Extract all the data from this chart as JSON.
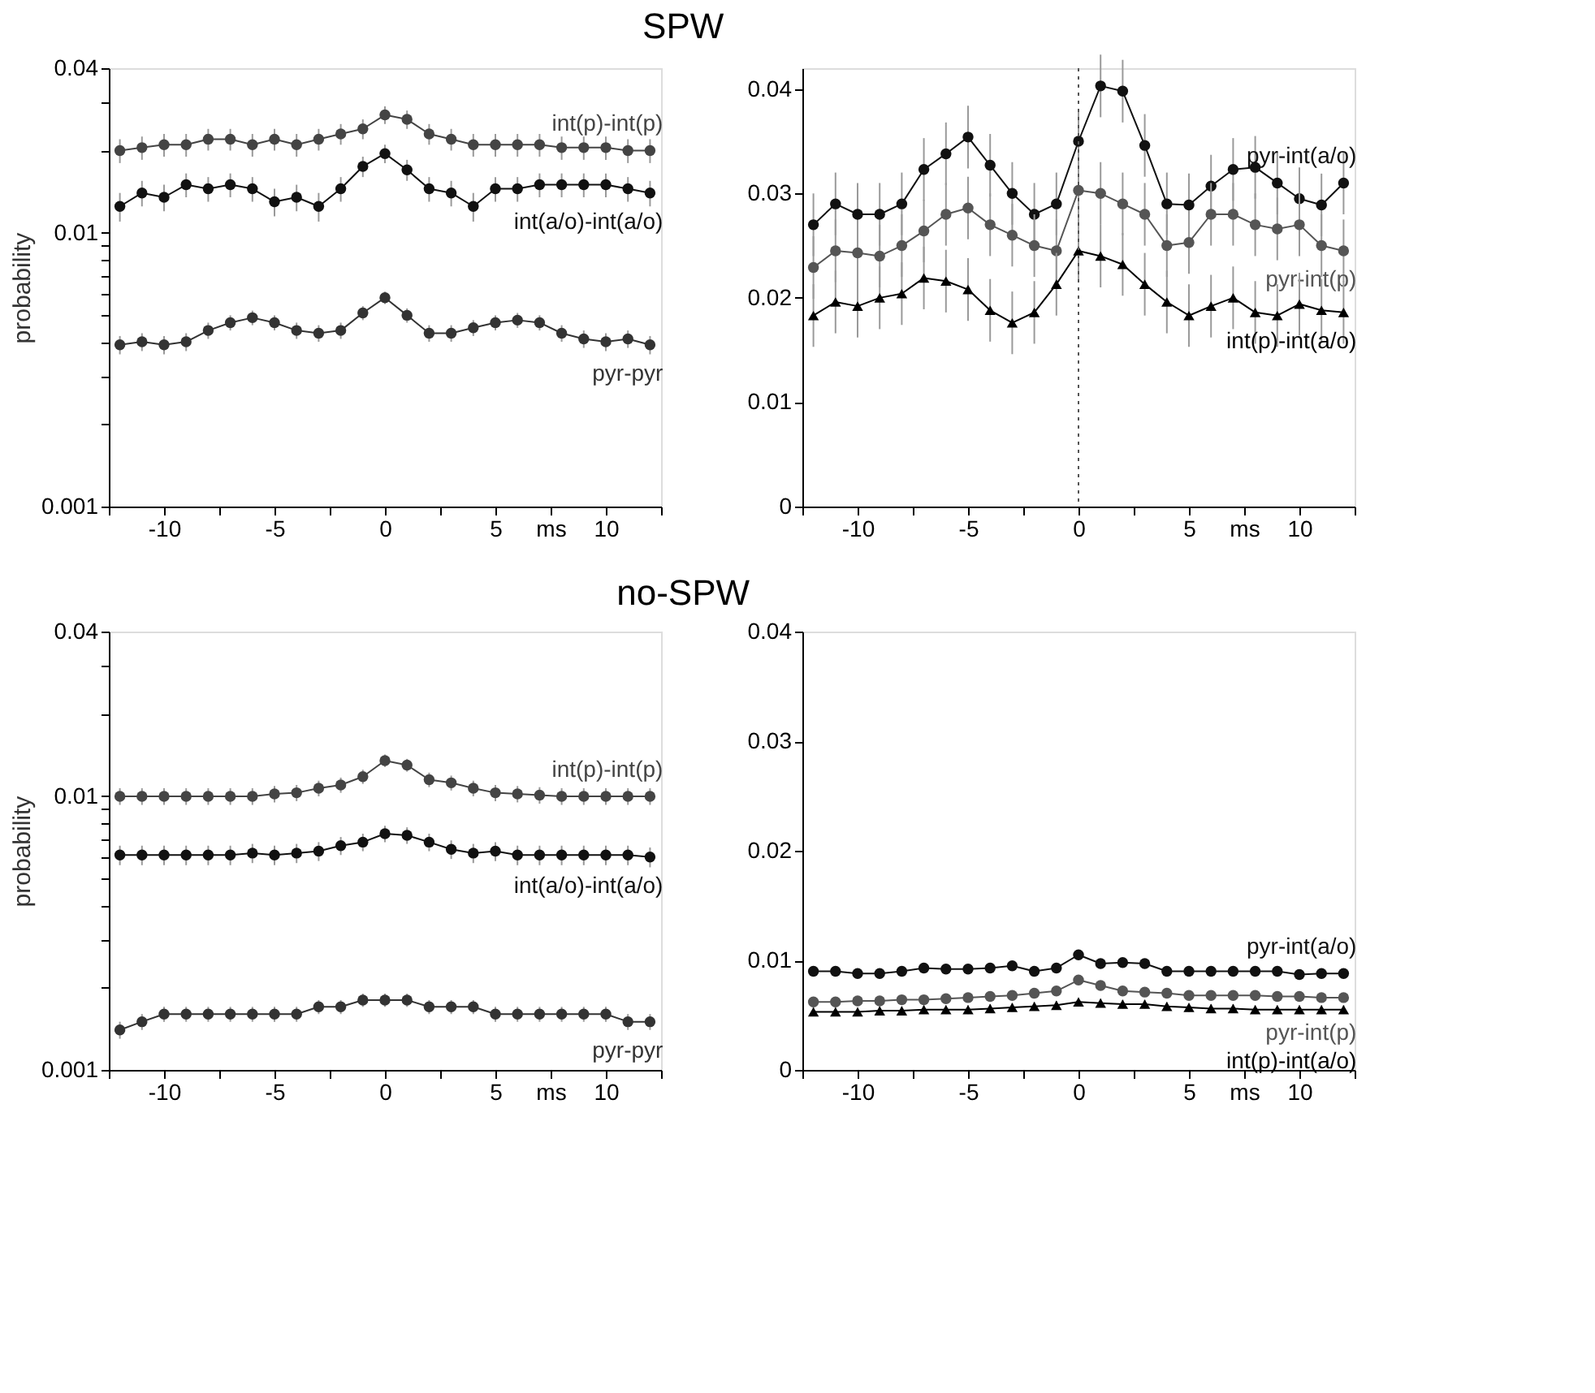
{
  "chart_data": [
    {
      "type": "line",
      "title": "SPW",
      "ylabel": "probability",
      "log": true,
      "xlim": [
        -12.5,
        12.5
      ],
      "ylim": [
        0.001,
        0.04
      ],
      "xticks": [
        {
          "value": -12.5,
          "label": null
        },
        -10,
        {
          "value": -7.5,
          "label": null
        },
        -5,
        {
          "value": -2.5,
          "label": null
        },
        0,
        {
          "value": 2.5,
          "label": null
        },
        5,
        {
          "value": 7.5,
          "label": "ms"
        },
        10,
        {
          "value": 12.5,
          "label": null
        }
      ],
      "yticks": [
        0.001,
        {
          "value": 0.002,
          "label": null
        },
        {
          "value": 0.003,
          "label": null
        },
        {
          "value": 0.004,
          "label": null
        },
        {
          "value": 0.005,
          "label": null
        },
        {
          "value": 0.006,
          "label": null
        },
        {
          "value": 0.007,
          "label": null
        },
        {
          "value": 0.008,
          "label": null
        },
        {
          "value": 0.009,
          "label": null
        },
        0.01,
        {
          "value": 0.02,
          "label": null
        },
        {
          "value": 0.03,
          "label": null
        },
        0.04
      ],
      "x": [
        -12,
        -11,
        -10,
        -9,
        -8,
        -7,
        -6,
        -5,
        -4,
        -3,
        -2,
        -1,
        0,
        1,
        2,
        3,
        4,
        5,
        6,
        7,
        8,
        9,
        10,
        11,
        12
      ],
      "marker": "circle",
      "series": [
        {
          "name": "int(p)-int(p)",
          "color": "#444444",
          "values": [
            0.02,
            0.0205,
            0.021,
            0.021,
            0.022,
            0.022,
            0.021,
            0.022,
            0.021,
            0.022,
            0.023,
            0.024,
            0.027,
            0.026,
            0.023,
            0.022,
            0.021,
            0.021,
            0.021,
            0.021,
            0.0205,
            0.0205,
            0.0205,
            0.02,
            0.02
          ],
          "errors": [
            0.002,
            0.002,
            0.002,
            0.002,
            0.002,
            0.002,
            0.002,
            0.002,
            0.002,
            0.002,
            0.002,
            0.002,
            0.002,
            0.002,
            0.002,
            0.002,
            0.002,
            0.002,
            0.002,
            0.002,
            0.002,
            0.002,
            0.002,
            0.002,
            0.002
          ]
        },
        {
          "name": "int(a/o)-int(a/o)",
          "color": "#111111",
          "values": [
            0.0125,
            0.014,
            0.0135,
            0.015,
            0.0145,
            0.015,
            0.0145,
            0.013,
            0.0135,
            0.0125,
            0.0145,
            0.0175,
            0.0195,
            0.017,
            0.0145,
            0.014,
            0.0125,
            0.0145,
            0.0145,
            0.015,
            0.015,
            0.015,
            0.015,
            0.0145,
            0.014
          ],
          "errors": [
            0.0015,
            0.0015,
            0.0015,
            0.0015,
            0.0015,
            0.0015,
            0.0015,
            0.0015,
            0.0015,
            0.0015,
            0.0015,
            0.0015,
            0.0015,
            0.0015,
            0.0015,
            0.0015,
            0.0015,
            0.0015,
            0.0015,
            0.0015,
            0.0015,
            0.0015,
            0.0015,
            0.0015,
            0.0015
          ]
        },
        {
          "name": "pyr-pyr",
          "color": "#333333",
          "values": [
            0.0039,
            0.004,
            0.0039,
            0.004,
            0.0044,
            0.0047,
            0.0049,
            0.0047,
            0.0044,
            0.0043,
            0.0044,
            0.0051,
            0.0058,
            0.005,
            0.0043,
            0.0043,
            0.0045,
            0.0047,
            0.0048,
            0.0047,
            0.0043,
            0.0041,
            0.004,
            0.0041,
            0.0039
          ],
          "errors": [
            0.0003,
            0.0003,
            0.0003,
            0.0003,
            0.0003,
            0.0003,
            0.0003,
            0.0003,
            0.0003,
            0.0003,
            0.0003,
            0.0003,
            0.0003,
            0.0003,
            0.0003,
            0.0003,
            0.0003,
            0.0003,
            0.0003,
            0.0003,
            0.0003,
            0.0003,
            0.0003,
            0.0003,
            0.0003
          ]
        }
      ]
    },
    {
      "type": "line",
      "xlim": [
        -12.5,
        12.5
      ],
      "ylim": [
        0,
        0.042
      ],
      "xticks": [
        {
          "value": -12.5,
          "label": null
        },
        -10,
        {
          "value": -7.5,
          "label": null
        },
        -5,
        {
          "value": -2.5,
          "label": null
        },
        0,
        {
          "value": 2.5,
          "label": null
        },
        5,
        {
          "value": 7.5,
          "label": "ms"
        },
        10,
        {
          "value": 12.5,
          "label": null
        }
      ],
      "yticks": [
        0,
        0.01,
        0.02,
        0.03,
        0.04
      ],
      "x": [
        -12,
        -11,
        -10,
        -9,
        -8,
        -7,
        -6,
        -5,
        -4,
        -3,
        -2,
        -1,
        0,
        1,
        2,
        3,
        4,
        5,
        6,
        7,
        8,
        9,
        10,
        11,
        12
      ],
      "marker": "circle",
      "ref_lines": [
        {
          "axis": "x",
          "value": 0,
          "color": "#555555",
          "line_style": "dotted"
        }
      ],
      "series": [
        {
          "name": "pyr-int(a/o)",
          "color": "#111111",
          "values": [
            0.027,
            0.029,
            0.028,
            0.028,
            0.029,
            0.0323,
            0.0338,
            0.0354,
            0.0327,
            0.03,
            0.028,
            0.029,
            0.035,
            0.0403,
            0.0398,
            0.0346,
            0.029,
            0.0289,
            0.0307,
            0.0323,
            0.0325,
            0.031,
            0.0295,
            0.0289,
            0.031
          ],
          "errors": [
            0.003,
            0.003,
            0.003,
            0.003,
            0.003,
            0.003,
            0.003,
            0.003,
            0.003,
            0.003,
            0.003,
            0.003,
            0.003,
            0.003,
            0.003,
            0.003,
            0.003,
            0.003,
            0.003,
            0.003,
            0.003,
            0.003,
            0.003,
            0.003,
            0.003
          ]
        },
        {
          "name": "pyr-int(p)",
          "color": "#555555",
          "values": [
            0.0229,
            0.0245,
            0.0243,
            0.024,
            0.025,
            0.0264,
            0.028,
            0.0286,
            0.027,
            0.026,
            0.025,
            0.0245,
            0.0303,
            0.03,
            0.029,
            0.028,
            0.025,
            0.0253,
            0.028,
            0.028,
            0.027,
            0.0266,
            0.027,
            0.025,
            0.0245
          ],
          "errors": [
            0.003,
            0.003,
            0.003,
            0.003,
            0.003,
            0.003,
            0.003,
            0.003,
            0.003,
            0.003,
            0.003,
            0.003,
            0.003,
            0.003,
            0.003,
            0.003,
            0.003,
            0.003,
            0.003,
            0.003,
            0.003,
            0.003,
            0.003,
            0.003,
            0.003
          ]
        },
        {
          "name": "int(p)-int(a/o)",
          "color": "#000000",
          "marker": "triangle",
          "values": [
            0.0183,
            0.0196,
            0.0192,
            0.02,
            0.0204,
            0.0219,
            0.0216,
            0.0208,
            0.0188,
            0.0176,
            0.0186,
            0.0213,
            0.0245,
            0.024,
            0.0232,
            0.0213,
            0.0196,
            0.0183,
            0.0192,
            0.02,
            0.0186,
            0.0183,
            0.0194,
            0.0188,
            0.0186
          ],
          "errors": [
            0.003,
            0.003,
            0.003,
            0.003,
            0.003,
            0.003,
            0.003,
            0.003,
            0.003,
            0.003,
            0.003,
            0.003,
            0.003,
            0.003,
            0.003,
            0.003,
            0.003,
            0.003,
            0.003,
            0.003,
            0.003,
            0.003,
            0.003,
            0.003,
            0.003
          ]
        }
      ]
    },
    {
      "type": "line",
      "title": "no-SPW",
      "ylabel": "probability",
      "log": true,
      "xlim": [
        -12.5,
        12.5
      ],
      "ylim": [
        0.001,
        0.04
      ],
      "xticks": [
        {
          "value": -12.5,
          "label": null
        },
        -10,
        {
          "value": -7.5,
          "label": null
        },
        -5,
        {
          "value": -2.5,
          "label": null
        },
        0,
        {
          "value": 2.5,
          "label": null
        },
        5,
        {
          "value": 7.5,
          "label": "ms"
        },
        10,
        {
          "value": 12.5,
          "label": null
        }
      ],
      "yticks": [
        0.001,
        {
          "value": 0.002,
          "label": null
        },
        {
          "value": 0.003,
          "label": null
        },
        {
          "value": 0.004,
          "label": null
        },
        {
          "value": 0.005,
          "label": null
        },
        {
          "value": 0.006,
          "label": null
        },
        {
          "value": 0.007,
          "label": null
        },
        {
          "value": 0.008,
          "label": null
        },
        {
          "value": 0.009,
          "label": null
        },
        0.01,
        {
          "value": 0.02,
          "label": null
        },
        {
          "value": 0.03,
          "label": null
        },
        0.04
      ],
      "x": [
        -12,
        -11,
        -10,
        -9,
        -8,
        -7,
        -6,
        -5,
        -4,
        -3,
        -2,
        -1,
        0,
        1,
        2,
        3,
        4,
        5,
        6,
        7,
        8,
        9,
        10,
        11,
        12
      ],
      "marker": "circle",
      "series": [
        {
          "name": "int(p)-int(p)",
          "color": "#444444",
          "values": [
            0.01,
            0.01,
            0.01,
            0.01,
            0.01,
            0.01,
            0.01,
            0.0102,
            0.0103,
            0.0107,
            0.011,
            0.0118,
            0.0135,
            0.013,
            0.0115,
            0.0112,
            0.0107,
            0.0103,
            0.0102,
            0.0101,
            0.01,
            0.01,
            0.01,
            0.01,
            0.01
          ],
          "errors": [
            0.0007,
            0.0007,
            0.0007,
            0.0007,
            0.0007,
            0.0007,
            0.0007,
            0.0007,
            0.0007,
            0.0007,
            0.0007,
            0.0007,
            0.0007,
            0.0007,
            0.0007,
            0.0007,
            0.0007,
            0.0007,
            0.0007,
            0.0007,
            0.0007,
            0.0007,
            0.0007,
            0.0007,
            0.0007
          ]
        },
        {
          "name": "int(a/o)-int(a/o)",
          "color": "#111111",
          "values": [
            0.0061,
            0.0061,
            0.0061,
            0.0061,
            0.0061,
            0.0061,
            0.0062,
            0.0061,
            0.0062,
            0.0063,
            0.0066,
            0.0068,
            0.0073,
            0.0072,
            0.0068,
            0.0064,
            0.0062,
            0.0063,
            0.0061,
            0.0061,
            0.0061,
            0.0061,
            0.0061,
            0.0061,
            0.006
          ],
          "errors": [
            0.0005,
            0.0005,
            0.0005,
            0.0005,
            0.0005,
            0.0005,
            0.0005,
            0.0005,
            0.0005,
            0.0005,
            0.0005,
            0.0005,
            0.0005,
            0.0005,
            0.0005,
            0.0005,
            0.0005,
            0.0005,
            0.0005,
            0.0005,
            0.0005,
            0.0005,
            0.0005,
            0.0005,
            0.0005
          ]
        },
        {
          "name": "pyr-pyr",
          "color": "#333333",
          "values": [
            0.0014,
            0.0015,
            0.0016,
            0.0016,
            0.0016,
            0.0016,
            0.0016,
            0.0016,
            0.0016,
            0.0017,
            0.0017,
            0.0018,
            0.0018,
            0.0018,
            0.0017,
            0.0017,
            0.0017,
            0.0016,
            0.0016,
            0.0016,
            0.0016,
            0.0016,
            0.0016,
            0.0015,
            0.0015
          ],
          "errors": [
            0.0001,
            0.0001,
            0.0001,
            0.0001,
            0.0001,
            0.0001,
            0.0001,
            0.0001,
            0.0001,
            0.0001,
            0.0001,
            0.0001,
            0.0001,
            0.0001,
            0.0001,
            0.0001,
            0.0001,
            0.0001,
            0.0001,
            0.0001,
            0.0001,
            0.0001,
            0.0001,
            0.0001,
            0.0001
          ]
        }
      ]
    },
    {
      "type": "line",
      "xlim": [
        -12.5,
        12.5
      ],
      "ylim": [
        0,
        0.04
      ],
      "xticks": [
        {
          "value": -12.5,
          "label": null
        },
        -10,
        {
          "value": -7.5,
          "label": null
        },
        -5,
        {
          "value": -2.5,
          "label": null
        },
        0,
        {
          "value": 2.5,
          "label": null
        },
        5,
        {
          "value": 7.5,
          "label": "ms"
        },
        10,
        {
          "value": 12.5,
          "label": null
        }
      ],
      "yticks": [
        0,
        0.01,
        0.02,
        0.03,
        0.04
      ],
      "x": [
        -12,
        -11,
        -10,
        -9,
        -8,
        -7,
        -6,
        -5,
        -4,
        -3,
        -2,
        -1,
        0,
        1,
        2,
        3,
        4,
        5,
        6,
        7,
        8,
        9,
        10,
        11,
        12
      ],
      "marker": "circle",
      "series": [
        {
          "name": "pyr-int(a/o)",
          "color": "#111111",
          "values": [
            0.009,
            0.009,
            0.0088,
            0.0088,
            0.009,
            0.0093,
            0.0092,
            0.0092,
            0.0093,
            0.0095,
            0.009,
            0.0093,
            0.0105,
            0.0097,
            0.0098,
            0.0097,
            0.009,
            0.009,
            0.009,
            0.009,
            0.009,
            0.009,
            0.0087,
            0.0088,
            0.0088
          ],
          "errors": [
            0.0003,
            0.0003,
            0.0003,
            0.0003,
            0.0003,
            0.0003,
            0.0003,
            0.0003,
            0.0003,
            0.0003,
            0.0003,
            0.0003,
            0.0003,
            0.0003,
            0.0003,
            0.0003,
            0.0003,
            0.0003,
            0.0003,
            0.0003,
            0.0003,
            0.0003,
            0.0003,
            0.0003,
            0.0003
          ]
        },
        {
          "name": "pyr-int(p)",
          "color": "#555555",
          "values": [
            0.0062,
            0.0062,
            0.0063,
            0.0063,
            0.0064,
            0.0064,
            0.0065,
            0.0066,
            0.0067,
            0.0068,
            0.007,
            0.0072,
            0.0082,
            0.0077,
            0.0072,
            0.0071,
            0.007,
            0.0068,
            0.0068,
            0.0068,
            0.0068,
            0.0067,
            0.0067,
            0.0066,
            0.0066
          ],
          "errors": [
            0.0004,
            0.0004,
            0.0004,
            0.0004,
            0.0004,
            0.0004,
            0.0004,
            0.0004,
            0.0004,
            0.0004,
            0.0004,
            0.0004,
            0.0004,
            0.0004,
            0.0004,
            0.0004,
            0.0004,
            0.0004,
            0.0004,
            0.0004,
            0.0004,
            0.0004,
            0.0004,
            0.0004,
            0.0004
          ]
        },
        {
          "name": "int(p)-int(a/o)",
          "color": "#000000",
          "marker": "triangle",
          "values": [
            0.0053,
            0.0053,
            0.0053,
            0.0054,
            0.0054,
            0.0055,
            0.0055,
            0.0055,
            0.0056,
            0.0057,
            0.0058,
            0.0059,
            0.0062,
            0.0061,
            0.006,
            0.006,
            0.0058,
            0.0057,
            0.0056,
            0.0056,
            0.0055,
            0.0055,
            0.0055,
            0.0055,
            0.0055
          ],
          "errors": [
            0.0004,
            0.0004,
            0.0004,
            0.0004,
            0.0004,
            0.0004,
            0.0004,
            0.0004,
            0.0004,
            0.0004,
            0.0004,
            0.0004,
            0.0004,
            0.0004,
            0.0004,
            0.0004,
            0.0004,
            0.0004,
            0.0004,
            0.0004,
            0.0004,
            0.0004,
            0.0004,
            0.0004,
            0.0004
          ]
        }
      ]
    }
  ]
}
